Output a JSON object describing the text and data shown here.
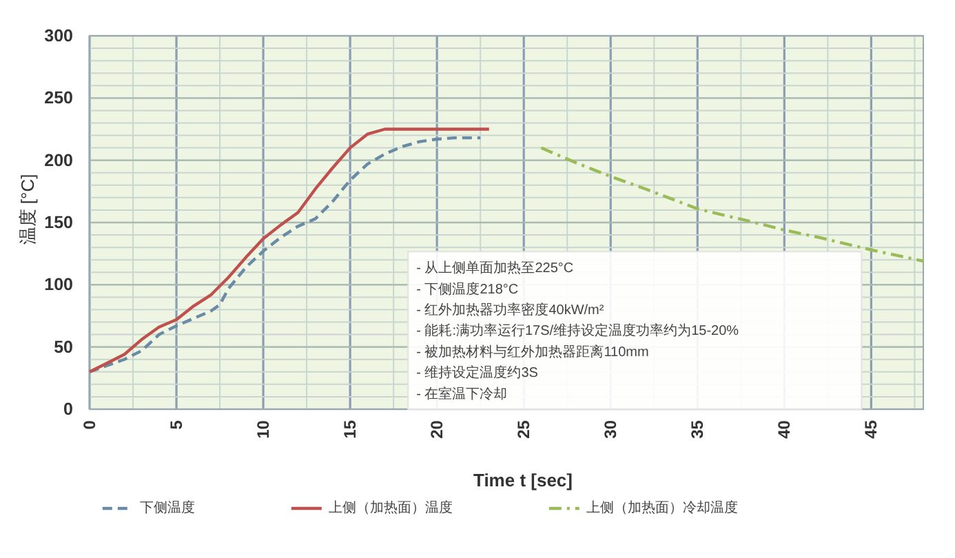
{
  "chart_data": {
    "type": "line",
    "xlabel": "Time t [sec]",
    "ylabel": "温度 [°C]",
    "xlim": [
      0,
      48
    ],
    "xticks": [
      0,
      5,
      10,
      15,
      20,
      25,
      30,
      35,
      40,
      45
    ],
    "ylim": [
      0,
      300
    ],
    "yticks": [
      0,
      50,
      100,
      150,
      200,
      250,
      300
    ],
    "grid": true,
    "legend": "bottom",
    "annotations": [
      "- 从上侧单面加热至225°C",
      "- 下侧温度218°C",
      "- 红外加热器功率密度40kW/m²",
      "- 能耗:满功率运行17S/维持设定温度功率约为15-20%",
      "- 被加热材料与红外加热器距离110mm",
      "- 维持设定温度约3S",
      "- 在室温下冷却"
    ],
    "series": [
      {
        "name": "下侧温度",
        "color": "#6a8aa5",
        "line_style": "dashed",
        "x": [
          0,
          1,
          2,
          3,
          4,
          5,
          6,
          7,
          7.5,
          8,
          9,
          10,
          11,
          12,
          13,
          14,
          15,
          16,
          17,
          18,
          19,
          20,
          21,
          22.5
        ],
        "values": [
          30,
          35,
          40,
          47,
          60,
          67,
          73,
          79,
          84,
          97,
          114,
          127,
          138,
          147,
          153,
          167,
          184,
          197,
          205,
          211,
          215,
          217,
          218,
          218
        ]
      },
      {
        "name": "上侧（加热面）温度",
        "color": "#c0504d",
        "line_style": "solid",
        "x": [
          0,
          1,
          2,
          3,
          4,
          5,
          6,
          7,
          8,
          9,
          10,
          11,
          12,
          13,
          14,
          15,
          16,
          17,
          18,
          20,
          23
        ],
        "values": [
          30,
          37,
          44,
          56,
          66,
          72,
          83,
          92,
          106,
          122,
          137,
          148,
          158,
          177,
          194,
          210,
          221,
          225,
          225,
          225,
          225
        ]
      },
      {
        "name": "上侧（加热面）冷却温度",
        "color": "#9bbb59",
        "line_style": "dashdot",
        "x": [
          26,
          28,
          30,
          32,
          35,
          38,
          40,
          42,
          45,
          48
        ],
        "values": [
          210,
          198,
          187,
          177,
          161,
          151,
          144,
          138,
          128,
          119
        ]
      }
    ]
  }
}
